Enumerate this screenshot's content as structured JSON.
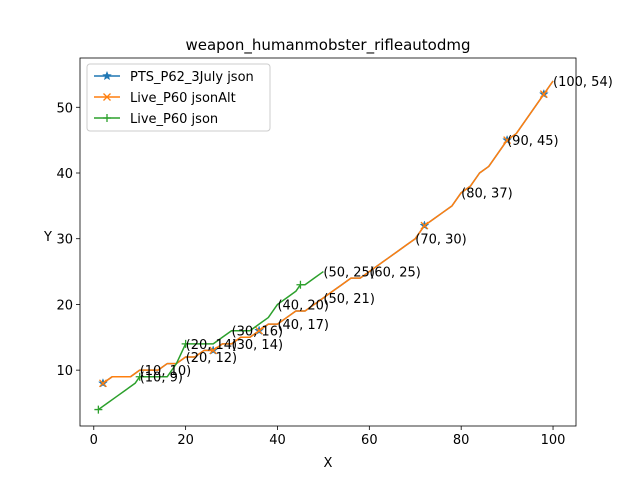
{
  "chart_data": {
    "type": "line",
    "title": "weapon_humanmobster_rifleautodmg",
    "xlabel": "X",
    "ylabel": "Y",
    "xlim": [
      -3,
      105
    ],
    "ylim": [
      1.5,
      57.5
    ],
    "xticks": [
      0,
      20,
      40,
      60,
      80,
      100
    ],
    "yticks": [
      10,
      20,
      30,
      40,
      50
    ],
    "legend_position": "top-left",
    "grid": false,
    "series": [
      {
        "name": "PTS_P62_3July json",
        "color": "#1f77b4",
        "marker": "star",
        "points": [
          [
            2,
            8
          ],
          [
            4,
            9
          ],
          [
            6,
            9
          ],
          [
            8,
            9
          ],
          [
            10,
            10
          ],
          [
            12,
            10
          ],
          [
            14,
            10
          ],
          [
            16,
            11
          ],
          [
            18,
            11
          ],
          [
            20,
            12
          ],
          [
            22,
            12
          ],
          [
            24,
            13
          ],
          [
            26,
            13
          ],
          [
            28,
            14
          ],
          [
            30,
            14
          ],
          [
            32,
            15
          ],
          [
            34,
            15
          ],
          [
            36,
            16
          ],
          [
            38,
            17
          ],
          [
            40,
            17
          ],
          [
            42,
            18
          ],
          [
            44,
            19
          ],
          [
            46,
            19
          ],
          [
            48,
            20
          ],
          [
            50,
            21
          ],
          [
            52,
            22
          ],
          [
            54,
            23
          ],
          [
            56,
            24
          ],
          [
            58,
            24
          ],
          [
            60,
            25
          ],
          [
            62,
            26
          ],
          [
            64,
            27
          ],
          [
            66,
            28
          ],
          [
            68,
            29
          ],
          [
            70,
            30
          ],
          [
            72,
            32
          ],
          [
            74,
            33
          ],
          [
            76,
            34
          ],
          [
            78,
            35
          ],
          [
            80,
            37
          ],
          [
            82,
            38
          ],
          [
            84,
            40
          ],
          [
            86,
            41
          ],
          [
            88,
            43
          ],
          [
            90,
            45
          ],
          [
            92,
            46
          ],
          [
            94,
            48
          ],
          [
            96,
            50
          ],
          [
            98,
            52
          ],
          [
            100,
            54
          ]
        ],
        "markers_at": [
          2,
          26,
          36,
          72,
          90,
          98
        ]
      },
      {
        "name": "Live_P60 jsonAlt",
        "color": "#ff7f0e",
        "marker": "x",
        "points": [
          [
            2,
            8
          ],
          [
            4,
            9
          ],
          [
            6,
            9
          ],
          [
            8,
            9
          ],
          [
            10,
            10
          ],
          [
            12,
            10
          ],
          [
            14,
            10
          ],
          [
            16,
            11
          ],
          [
            18,
            11
          ],
          [
            20,
            12
          ],
          [
            22,
            12
          ],
          [
            24,
            13
          ],
          [
            26,
            13
          ],
          [
            28,
            14
          ],
          [
            30,
            14
          ],
          [
            32,
            15
          ],
          [
            34,
            15
          ],
          [
            36,
            16
          ],
          [
            38,
            17
          ],
          [
            40,
            17
          ],
          [
            42,
            18
          ],
          [
            44,
            19
          ],
          [
            46,
            19
          ],
          [
            48,
            20
          ],
          [
            50,
            21
          ],
          [
            52,
            22
          ],
          [
            54,
            23
          ],
          [
            56,
            24
          ],
          [
            58,
            24
          ],
          [
            60,
            25
          ],
          [
            62,
            26
          ],
          [
            64,
            27
          ],
          [
            66,
            28
          ],
          [
            68,
            29
          ],
          [
            70,
            30
          ],
          [
            72,
            32
          ],
          [
            74,
            33
          ],
          [
            76,
            34
          ],
          [
            78,
            35
          ],
          [
            80,
            37
          ],
          [
            82,
            38
          ],
          [
            84,
            40
          ],
          [
            86,
            41
          ],
          [
            88,
            43
          ],
          [
            90,
            45
          ],
          [
            92,
            46
          ],
          [
            94,
            48
          ],
          [
            96,
            50
          ],
          [
            98,
            52
          ],
          [
            100,
            54
          ]
        ],
        "markers_at": [
          2,
          26,
          36,
          72,
          90,
          98
        ]
      },
      {
        "name": "Live_P60 json",
        "color": "#2ca02c",
        "marker": "plus",
        "points": [
          [
            1,
            4
          ],
          [
            3,
            5
          ],
          [
            5,
            6
          ],
          [
            7,
            7
          ],
          [
            9,
            8
          ],
          [
            10,
            9
          ],
          [
            12,
            9
          ],
          [
            14,
            9
          ],
          [
            16,
            9
          ],
          [
            18,
            11
          ],
          [
            20,
            14
          ],
          [
            22,
            14
          ],
          [
            24,
            14
          ],
          [
            26,
            14
          ],
          [
            28,
            15
          ],
          [
            30,
            16
          ],
          [
            32,
            16
          ],
          [
            34,
            16
          ],
          [
            36,
            17
          ],
          [
            38,
            18
          ],
          [
            40,
            20
          ],
          [
            42,
            21
          ],
          [
            44,
            22
          ],
          [
            45,
            23
          ],
          [
            46,
            23
          ],
          [
            48,
            24
          ],
          [
            50,
            25
          ]
        ],
        "markers_at": [
          1,
          10,
          20,
          35,
          45
        ]
      }
    ],
    "annotations": [
      {
        "text": "(10, 9)",
        "x": 10,
        "y": 9
      },
      {
        "text": "(10, 10)",
        "x": 10,
        "y": 10
      },
      {
        "text": "(20, 12)",
        "x": 20,
        "y": 12
      },
      {
        "text": "(20, 14)",
        "x": 20,
        "y": 14
      },
      {
        "text": "(30, 14)",
        "x": 30,
        "y": 14
      },
      {
        "text": "(30, 16)",
        "x": 30,
        "y": 16
      },
      {
        "text": "(40, 17)",
        "x": 40,
        "y": 17
      },
      {
        "text": "(40, 20)",
        "x": 40,
        "y": 20
      },
      {
        "text": "(50, 21)",
        "x": 50,
        "y": 21
      },
      {
        "text": "(50, 25)",
        "x": 50,
        "y": 25
      },
      {
        "text": "(60, 25)",
        "x": 60,
        "y": 25
      },
      {
        "text": "(70, 30)",
        "x": 70,
        "y": 30
      },
      {
        "text": "(80, 37)",
        "x": 80,
        "y": 37
      },
      {
        "text": "(90, 45)",
        "x": 90,
        "y": 45
      },
      {
        "text": "(100, 54)",
        "x": 100,
        "y": 54
      }
    ]
  }
}
